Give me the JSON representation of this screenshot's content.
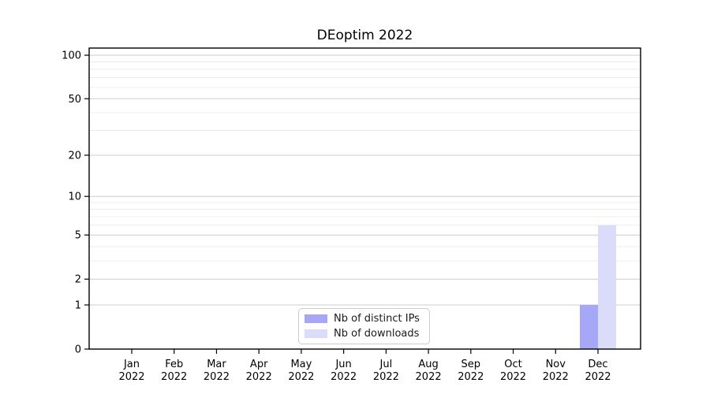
{
  "title": "DEoptim 2022",
  "chart_data": {
    "type": "bar",
    "title": "DEoptim 2022",
    "categories": [
      "Jan",
      "Feb",
      "Mar",
      "Apr",
      "May",
      "Jun",
      "Jul",
      "Aug",
      "Sep",
      "Oct",
      "Nov",
      "Dec"
    ],
    "category_year": "2022",
    "series": [
      {
        "name": "Nb of distinct IPs",
        "color": "#a7a7f7",
        "values": [
          0,
          0,
          0,
          0,
          0,
          0,
          0,
          0,
          0,
          0,
          0,
          1
        ]
      },
      {
        "name": "Nb of downloads",
        "color": "#dbdbfa",
        "values": [
          0,
          0,
          0,
          0,
          0,
          0,
          0,
          0,
          0,
          0,
          0,
          6
        ]
      }
    ],
    "yscale": "log1p",
    "yticks": [
      0,
      1,
      2,
      5,
      10,
      20,
      50,
      100
    ],
    "y_minor_gridlines": [
      3,
      4,
      6,
      7,
      8,
      9,
      30,
      40,
      60,
      70,
      80,
      90
    ],
    "ylim": [
      0,
      112
    ],
    "grid": true,
    "legend_position": "lower center",
    "colors": {
      "major_grid": "#cdcdcd",
      "minor_grid": "#ededed",
      "axis": "#000000",
      "text": "#000000"
    }
  }
}
